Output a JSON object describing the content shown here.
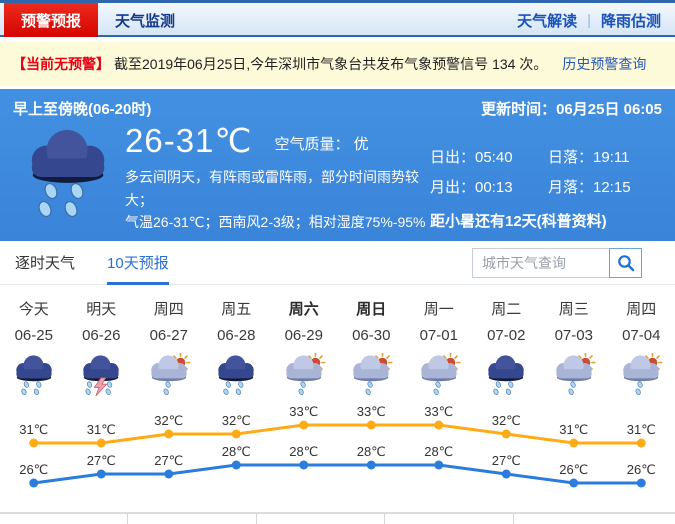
{
  "nav": {
    "tabs": [
      {
        "label": "预警预报",
        "active": true
      },
      {
        "label": "天气监测",
        "active": false
      }
    ],
    "links": [
      {
        "label": "天气解读"
      },
      {
        "label": "降雨估测"
      }
    ],
    "divider": "|"
  },
  "alert_bar": {
    "badge": "【当前无预警】",
    "text": "截至2019年06月25日,今年深圳市气象台共发布气象预警信号 134 次。",
    "link": "历史预警查询"
  },
  "current": {
    "period": "早上至傍晚(06-20时)",
    "update_text": "更新时间：06月25日 06:05",
    "temp_range": "26-31℃",
    "air_quality": "空气质量： 优",
    "description_line1": "多云间阴天，有阵雨或雷阵雨，部分时间雨势较大；",
    "description_line2": "气温26-31℃；西南风2-3级；相对湿度75%-95%",
    "sunrise": "日出：05:40",
    "sunset": "日落：19:11",
    "moonrise": "月出：00:13",
    "moonset": "月落：12:15",
    "solar_term": "距小暑还有12天(科普资料)",
    "icon": "rain"
  },
  "forecast_tabs": [
    {
      "label": "逐时天气",
      "active": false
    },
    {
      "label": "10天预报",
      "active": true
    }
  ],
  "search": {
    "placeholder": "城市天气查询",
    "icon": "search-icon"
  },
  "forecast": {
    "days": [
      {
        "weekday": "今天",
        "date": "06-25",
        "icon": "rain",
        "bold": false
      },
      {
        "weekday": "明天",
        "date": "06-26",
        "icon": "thunder-rain",
        "bold": false
      },
      {
        "weekday": "周四",
        "date": "06-27",
        "icon": "sun-rain",
        "bold": false
      },
      {
        "weekday": "周五",
        "date": "06-28",
        "icon": "rain",
        "bold": false
      },
      {
        "weekday": "周六",
        "date": "06-29",
        "icon": "sun-rain",
        "bold": true
      },
      {
        "weekday": "周日",
        "date": "06-30",
        "icon": "sun-rain",
        "bold": true
      },
      {
        "weekday": "周一",
        "date": "07-01",
        "icon": "sun-rain",
        "bold": false
      },
      {
        "weekday": "周二",
        "date": "07-02",
        "icon": "rain",
        "bold": false
      },
      {
        "weekday": "周三",
        "date": "07-03",
        "icon": "sun-rain",
        "bold": false
      },
      {
        "weekday": "周四",
        "date": "07-04",
        "icon": "sun-rain",
        "bold": false
      }
    ]
  },
  "chart_data": {
    "type": "line",
    "categories": [
      "06-25",
      "06-26",
      "06-27",
      "06-28",
      "06-29",
      "06-30",
      "07-01",
      "07-02",
      "07-03",
      "07-04"
    ],
    "series": [
      {
        "name": "最高气温",
        "color": "#ffab17",
        "values": [
          31,
          31,
          32,
          32,
          33,
          33,
          33,
          32,
          31,
          31
        ]
      },
      {
        "name": "最低气温",
        "color": "#2a7cdd",
        "values": [
          26,
          27,
          27,
          28,
          28,
          28,
          28,
          27,
          26,
          26
        ]
      }
    ],
    "unit": "℃",
    "ylim": [
      26,
      33
    ],
    "grid": false,
    "legend": "none",
    "label_every_point": true
  },
  "colors": {
    "accent_red": "#e3120e",
    "panel_blue": "#3c87dd",
    "nav_link_blue": "#1a52b8",
    "active_tab_blue": "#2a6fd2",
    "alert_bg_yellow": "#fdfad9",
    "high_line_orange": "#ffab17",
    "low_line_blue": "#2a7cdd"
  }
}
